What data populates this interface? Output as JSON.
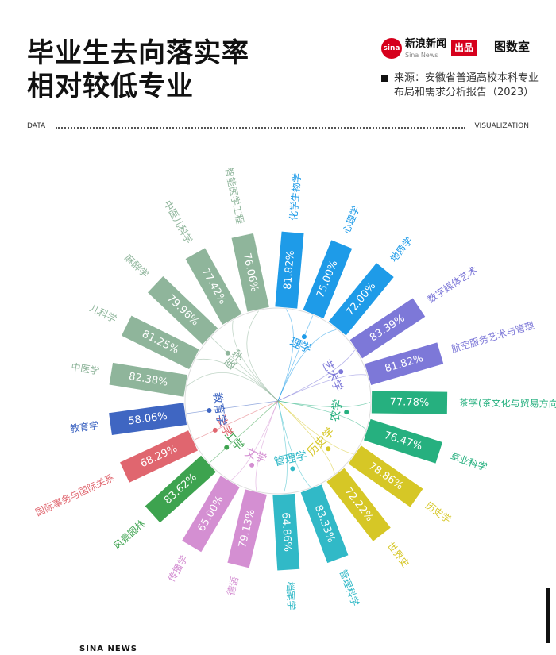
{
  "title_line1": "毕业生去向落实率",
  "title_line2": "相对较低专业",
  "brand": {
    "logo_text": "sina",
    "name": "新浪新闻",
    "name_en": "Sina News",
    "tag": "出品",
    "logo2": "图数室"
  },
  "source_text": "来源：安徽省普通高校本科专业布局和需求分析报告（2023）",
  "rule": {
    "left": "DATA",
    "right": "VISUALIZATION"
  },
  "footer": "SINA  NEWS",
  "chart_data": {
    "type": "bar",
    "layout": "radial",
    "groups": [
      {
        "name": "理学",
        "color": "#1e9be8"
      },
      {
        "name": "艺术学",
        "color": "#7d78d8"
      },
      {
        "name": "农学",
        "color": "#26b07f"
      },
      {
        "name": "历史学",
        "color": "#d6c726"
      },
      {
        "name": "管理学",
        "color": "#31b9c7"
      },
      {
        "name": "文学",
        "color": "#d48fd2"
      },
      {
        "name": "工学",
        "color": "#3da34f"
      },
      {
        "name": "法学",
        "color": "#e0666f"
      },
      {
        "name": "教育学",
        "color": "#3f66c2"
      },
      {
        "name": "医学",
        "color": "#8fb59b"
      }
    ],
    "bars": [
      {
        "name": "化学生物学",
        "value": 81.82,
        "group": "理学"
      },
      {
        "name": "心理学",
        "value": 75.0,
        "group": "理学"
      },
      {
        "name": "地质学",
        "value": 72.0,
        "group": "理学"
      },
      {
        "name": "数字媒体艺术",
        "value": 83.39,
        "group": "艺术学"
      },
      {
        "name": "航空服务艺术与管理",
        "value": 81.82,
        "group": "艺术学"
      },
      {
        "name": "茶学(茶文化与贸易方向)",
        "value": 77.78,
        "group": "农学"
      },
      {
        "name": "草业科学",
        "value": 76.47,
        "group": "农学"
      },
      {
        "name": "历史学",
        "value": 78.86,
        "group": "历史学"
      },
      {
        "name": "世界史",
        "value": 72.22,
        "group": "历史学"
      },
      {
        "name": "管理科学",
        "value": 83.33,
        "group": "管理学"
      },
      {
        "name": "档案学",
        "value": 64.86,
        "group": "管理学"
      },
      {
        "name": "德语",
        "value": 79.13,
        "group": "文学"
      },
      {
        "name": "传播学",
        "value": 65.0,
        "group": "文学"
      },
      {
        "name": "风景园林",
        "value": 83.62,
        "group": "工学"
      },
      {
        "name": "国际事务与国际关系",
        "value": 68.29,
        "group": "法学"
      },
      {
        "name": "教育学",
        "value": 58.06,
        "group": "教育学"
      },
      {
        "name": "中医学",
        "value": 82.38,
        "group": "医学"
      },
      {
        "name": "儿科学",
        "value": 81.25,
        "group": "医学"
      },
      {
        "name": "麻醉学",
        "value": 79.96,
        "group": "医学"
      },
      {
        "name": "中医儿科学",
        "value": 77.42,
        "group": "医学"
      },
      {
        "name": "智能医学工程",
        "value": 76.06,
        "group": "医学"
      }
    ],
    "value_format": "percent"
  }
}
